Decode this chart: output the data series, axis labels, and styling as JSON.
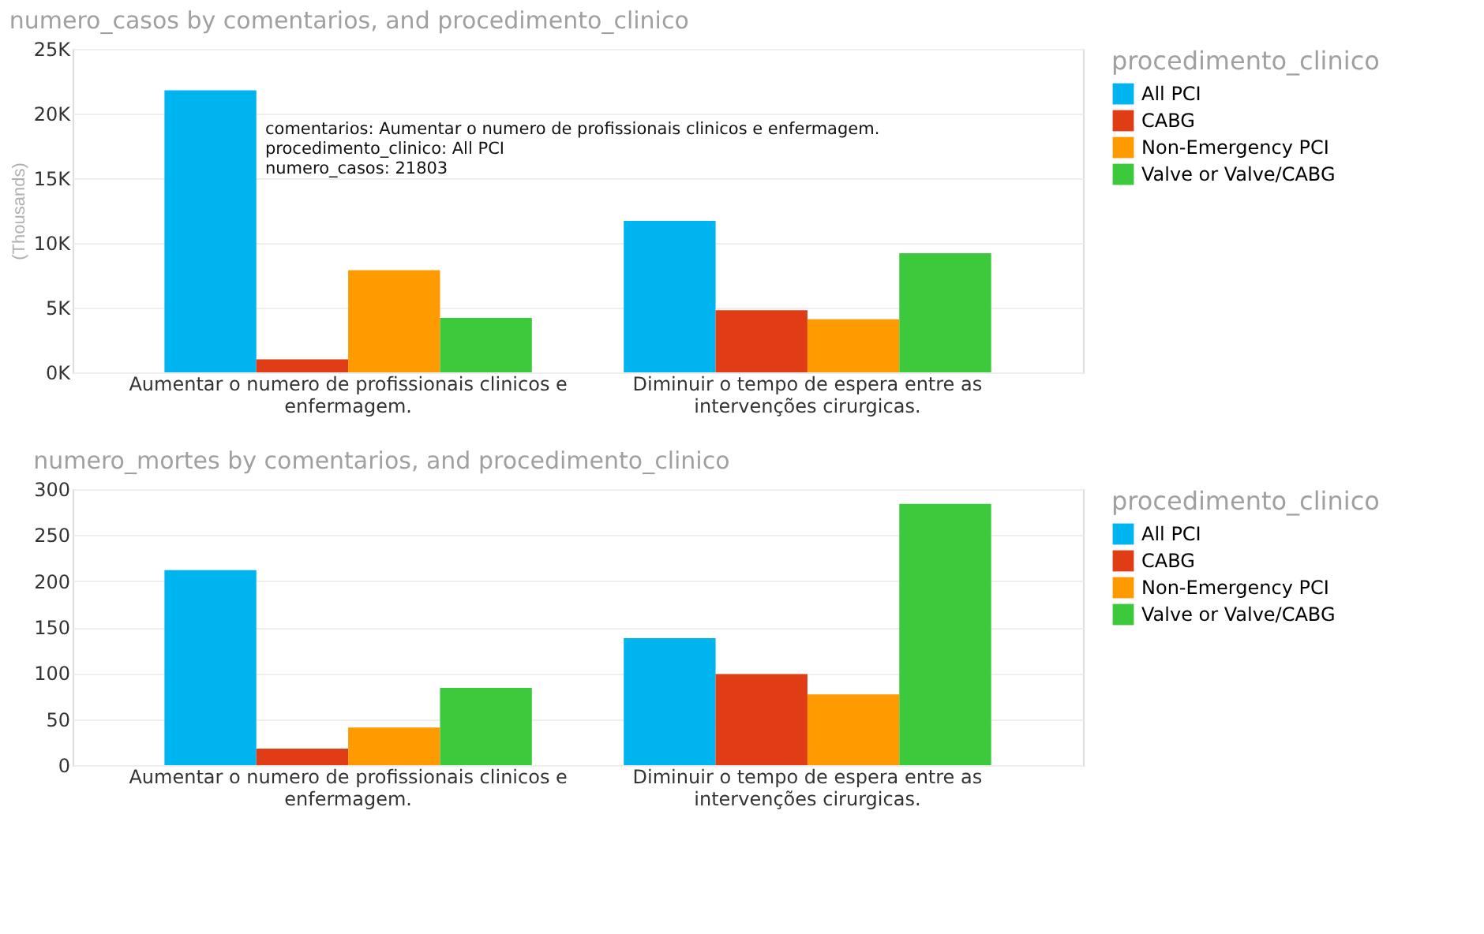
{
  "chart_data": [
    {
      "type": "bar",
      "title": "numero_casos by comentarios, and procedimento_clinico",
      "ylabel": "(Thousands)",
      "legend_title": "procedimento_clinico",
      "categories": [
        "Aumentar o numero de profissionais clinicos e enfermagem.",
        "Diminuir o tempo de espera entre as intervenções cirurgicas."
      ],
      "series": [
        {
          "name": "All PCI",
          "color": "#00b4ef",
          "values": [
            21803,
            11700
          ]
        },
        {
          "name": "CABG",
          "color": "#e03c16",
          "values": [
            1000,
            4800
          ]
        },
        {
          "name": "Non-Emergency PCI",
          "color": "#ff9a00",
          "values": [
            7900,
            4100
          ]
        },
        {
          "name": "Valve or Valve/CABG",
          "color": "#3cc93c",
          "values": [
            4200,
            9200
          ]
        }
      ],
      "ylim": [
        0,
        25000
      ],
      "yticks": [
        {
          "value": 0,
          "label": "0K"
        },
        {
          "value": 5000,
          "label": "5K"
        },
        {
          "value": 10000,
          "label": "10K"
        },
        {
          "value": 15000,
          "label": "15K"
        },
        {
          "value": 20000,
          "label": "20K"
        },
        {
          "value": 25000,
          "label": "25K"
        }
      ],
      "grid": "y",
      "legend": "top right",
      "annotations": [
        "comentarios: Aumentar o numero de profissionais clinicos e enfermagem.",
        "procedimento_clinico: All PCI",
        "numero_casos: 21803"
      ]
    },
    {
      "type": "bar",
      "title": "numero_mortes by comentarios, and procedimento_clinico",
      "legend_title": "procedimento_clinico",
      "categories": [
        "Aumentar o numero de profissionais clinicos e enfermagem.",
        "Diminuir o tempo de espera entre as intervenções cirurgicas."
      ],
      "series": [
        {
          "name": "All PCI",
          "color": "#00b4ef",
          "values": [
            212,
            138
          ]
        },
        {
          "name": "CABG",
          "color": "#e03c16",
          "values": [
            18,
            99
          ]
        },
        {
          "name": "Non-Emergency PCI",
          "color": "#ff9a00",
          "values": [
            41,
            77
          ]
        },
        {
          "name": "Valve or Valve/CABG",
          "color": "#3cc93c",
          "values": [
            84,
            284
          ]
        }
      ],
      "ylim": [
        0,
        300
      ],
      "yticks": [
        0,
        50,
        100,
        150,
        200,
        250,
        300
      ],
      "grid": "y",
      "legend": "top right"
    }
  ]
}
